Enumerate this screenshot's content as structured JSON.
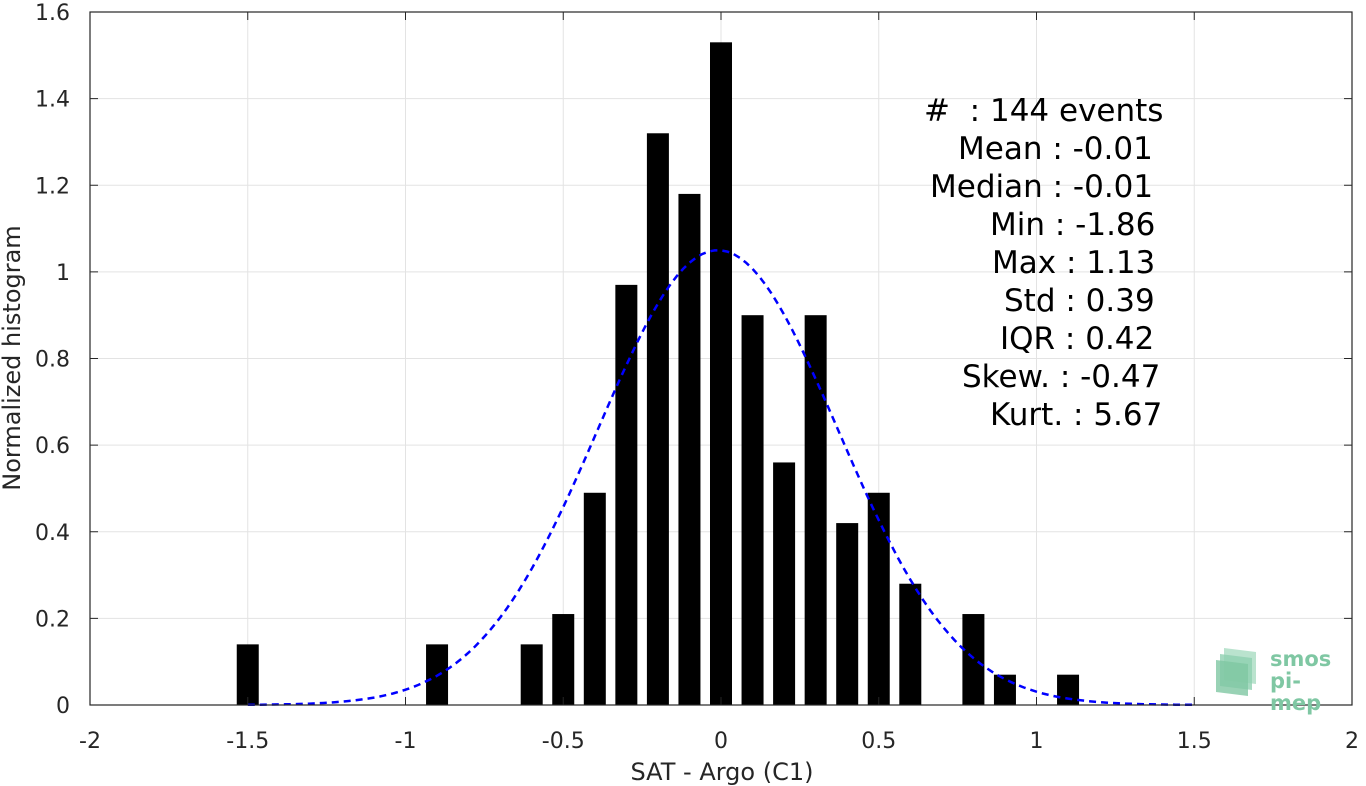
{
  "chart_data": {
    "type": "bar",
    "xlabel": "SAT - Argo (C1)",
    "ylabel": "Normalized histogram",
    "xlim": [
      -2,
      2
    ],
    "ylim": [
      0,
      1.6
    ],
    "xticks": [
      -2,
      -1.5,
      -1,
      -0.5,
      0,
      0.5,
      1,
      1.5,
      2
    ],
    "xtick_labels": [
      "-2",
      "-1.5",
      "-1",
      "-0.5",
      "0",
      "0.5",
      "1",
      "1.5",
      "2"
    ],
    "yticks": [
      0,
      0.2,
      0.4,
      0.6,
      0.8,
      1,
      1.2,
      1.4,
      1.6
    ],
    "ytick_labels": [
      "0",
      "0.2",
      "0.4",
      "0.6",
      "0.8",
      "1",
      "1.2",
      "1.4",
      "1.6"
    ],
    "grid": true,
    "bar_color": "#000000",
    "bars": {
      "x": [
        -1.5,
        -0.9,
        -0.6,
        -0.5,
        -0.4,
        -0.3,
        -0.2,
        -0.1,
        0.0,
        0.1,
        0.2,
        0.3,
        0.4,
        0.5,
        0.6,
        0.8,
        0.9,
        1.1
      ],
      "values": [
        0.14,
        0.14,
        0.14,
        0.21,
        0.49,
        0.97,
        1.32,
        1.18,
        1.53,
        0.9,
        0.56,
        0.9,
        0.42,
        0.49,
        0.28,
        0.21,
        0.07,
        0.07
      ]
    },
    "fit_curve": {
      "style": "dashed",
      "color": "#0000ff",
      "mean": -0.01,
      "std": 0.38,
      "peak": 1.05,
      "x_range": [
        -1.5,
        1.5
      ]
    }
  },
  "stats": [
    {
      "label": "#  : 144 events",
      "offset": 44
    },
    {
      "label": "Mean : -0.01",
      "offset": 78
    },
    {
      "label": "Median : -0.01",
      "offset": 50
    },
    {
      "label": "Min : -1.86",
      "offset": 110
    },
    {
      "label": "Max : 1.13",
      "offset": 112
    },
    {
      "label": "Std : 0.39",
      "offset": 124
    },
    {
      "label": "IQR : 0.42",
      "offset": 120
    },
    {
      "label": "Skew. : -0.47",
      "offset": 82
    },
    {
      "label": "Kurt. : 5.67",
      "offset": 110
    }
  ],
  "logo": {
    "line1": "smos",
    "line2": "pi-mep",
    "color": "#7fc7a3"
  }
}
